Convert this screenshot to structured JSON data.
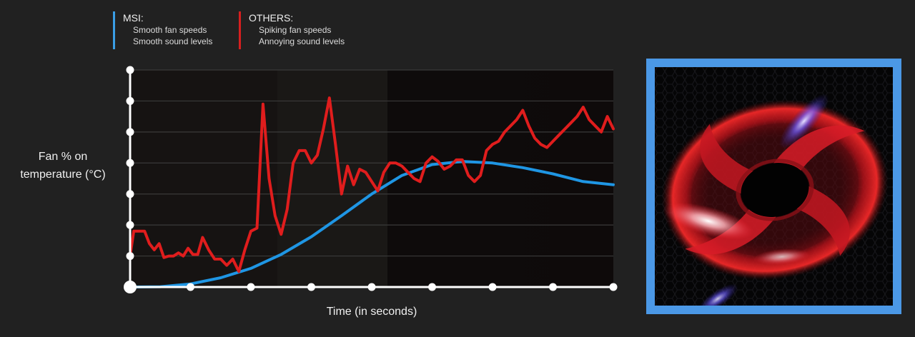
{
  "legend": {
    "msi": {
      "title": "MSI:",
      "items": [
        "Smooth fan speeds",
        "Smooth sound levels"
      ],
      "color": "#3a9ee6"
    },
    "others": {
      "title": "OTHERS:",
      "items": [
        "Spiking fan speeds",
        "Annoying sound levels"
      ],
      "color": "#d61f1f"
    }
  },
  "axes": {
    "ylabel_line1": "Fan % on",
    "ylabel_line2": "temperature (°C)",
    "xlabel": "Time (in seconds)"
  },
  "chart_data": {
    "type": "line",
    "xlabel": "Time (in seconds)",
    "ylabel": "Fan % on temperature (°C)",
    "x_ticks": 8,
    "y_ticks": 7,
    "xlim": [
      0,
      8
    ],
    "ylim": [
      0,
      7
    ],
    "grid": true,
    "legend_position": "top-left",
    "series": [
      {
        "name": "MSI",
        "color": "#1f96e4",
        "x": [
          0,
          0.5,
          1,
          1.5,
          2,
          2.5,
          3,
          3.5,
          4,
          4.5,
          5,
          5.5,
          6,
          6.5,
          7,
          7.5,
          8
        ],
        "y": [
          0,
          0.01,
          0.1,
          0.3,
          0.6,
          1.05,
          1.62,
          2.3,
          3.0,
          3.6,
          3.95,
          4.05,
          4.0,
          3.85,
          3.65,
          3.4,
          3.3
        ]
      },
      {
        "name": "OTHERS",
        "color": "#e01d1d",
        "x": [
          0,
          0.06,
          0.14,
          0.24,
          0.32,
          0.4,
          0.48,
          0.56,
          0.64,
          0.72,
          0.8,
          0.88,
          0.96,
          1.04,
          1.12,
          1.2,
          1.3,
          1.4,
          1.5,
          1.6,
          1.7,
          1.8,
          1.9,
          2.0,
          2.1,
          2.2,
          2.3,
          2.4,
          2.5,
          2.6,
          2.7,
          2.8,
          2.9,
          3.0,
          3.1,
          3.2,
          3.3,
          3.4,
          3.5,
          3.6,
          3.7,
          3.8,
          3.9,
          4.0,
          4.1,
          4.2,
          4.3,
          4.4,
          4.5,
          4.6,
          4.7,
          4.8,
          4.9,
          5.0,
          5.1,
          5.2,
          5.3,
          5.4,
          5.5,
          5.6,
          5.7,
          5.8,
          5.9,
          6.0,
          6.1,
          6.2,
          6.3,
          6.4,
          6.5,
          6.6,
          6.7,
          6.8,
          6.9,
          7.0,
          7.1,
          7.2,
          7.3,
          7.4,
          7.5,
          7.6,
          7.7,
          7.8,
          7.9,
          8.0
        ],
        "y": [
          1.0,
          1.8,
          1.8,
          1.8,
          1.4,
          1.2,
          1.4,
          0.95,
          1.0,
          1.0,
          1.1,
          1.0,
          1.25,
          1.05,
          1.05,
          1.6,
          1.2,
          0.9,
          0.9,
          0.7,
          0.9,
          0.5,
          1.2,
          1.8,
          1.9,
          5.9,
          3.5,
          2.3,
          1.7,
          2.5,
          4.0,
          4.4,
          4.4,
          4.0,
          4.25,
          5.1,
          6.1,
          4.6,
          3.0,
          3.9,
          3.3,
          3.8,
          3.7,
          3.4,
          3.1,
          3.7,
          4.0,
          4.0,
          3.9,
          3.7,
          3.5,
          3.4,
          4.0,
          4.2,
          4.05,
          3.8,
          3.9,
          4.1,
          4.1,
          3.6,
          3.4,
          3.6,
          4.4,
          4.6,
          4.7,
          5.0,
          5.2,
          5.4,
          5.7,
          5.2,
          4.8,
          4.6,
          4.5,
          4.7,
          4.9,
          5.1,
          5.3,
          5.5,
          5.8,
          5.4,
          5.2,
          5.0,
          5.5,
          5.1
        ]
      }
    ]
  }
}
